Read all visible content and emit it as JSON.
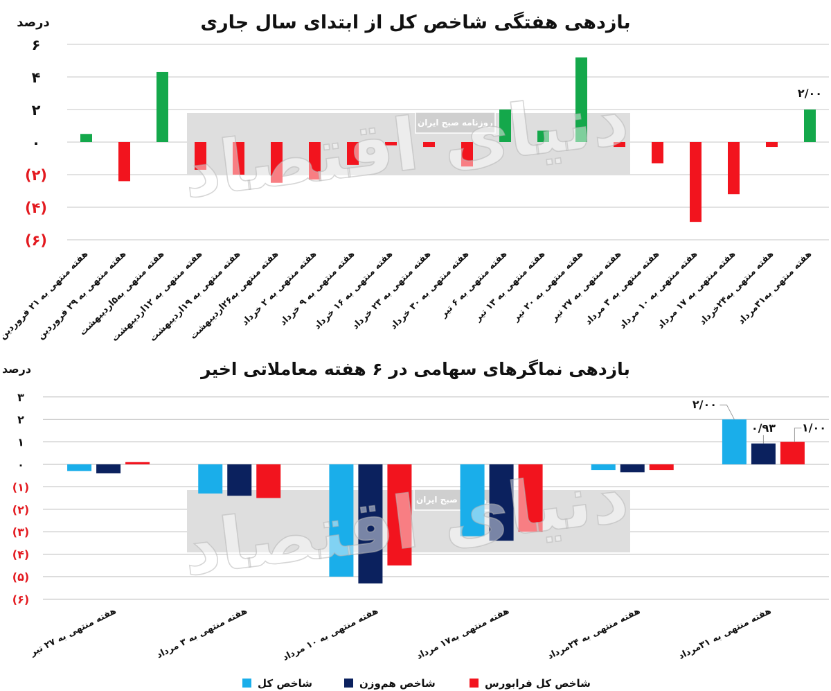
{
  "figure": {
    "watermark": {
      "logo_text": "دنیای اقتصاد",
      "tagline": "روزنامه صبح ایران"
    }
  },
  "chart_data": [
    {
      "type": "bar",
      "title": "بازدهی هفتگی شاخص کل از ابتدای سال جاری",
      "ylabel": "درصد",
      "xlabel": "",
      "categories": [
        "هفته منتهی به ۲۱ فروردین",
        "هفته منتهی به ۲۹ فروردین",
        "هفته منتهی به۵اردیبهشت",
        "هفته منتهی به ۱۲اردیبهشت",
        "هفته منتهی به ۱۹اردیبهشت",
        "هفته منتهی به۲۶اردیبهشت",
        "هفته منتهی به ۲ خرداد",
        "هفته منتهی به ۹ خرداد",
        "هفته منتهی به ۱۶ خرداد",
        "هفته منتهی به ۲۳ خرداد",
        "هفته منتهی به ۳۰ خرداد",
        "هفته منتهی به ۶ تیر",
        "هفته منتهی به ۱۳ تیر",
        "هفته منتهی به ۲۰ تیر",
        "هفته منتهی به ۲۷ تیر",
        "هفته منتهی به ۳ مرداد",
        "هفته منتهی به ۱۰ مرداد",
        "هفته منتهی به ۱۷ مرداد",
        "هفته منتهی به۲۴خرداد",
        "هفته منتهی به۳۱مرداد"
      ],
      "values": [
        0.5,
        -2.4,
        4.3,
        -1.7,
        -2.0,
        -2.5,
        -2.3,
        -1.4,
        -0.2,
        -0.3,
        -1.5,
        2.0,
        0.7,
        5.2,
        -0.3,
        -1.3,
        -4.9,
        -3.2,
        -0.3,
        2.0
      ],
      "ylim": [
        -6,
        6
      ],
      "yticks": [
        {
          "value": 6,
          "label": "۶"
        },
        {
          "value": 4,
          "label": "۴"
        },
        {
          "value": 2,
          "label": "۲"
        },
        {
          "value": 0,
          "label": "۰"
        },
        {
          "value": -2,
          "label": "(۲)"
        },
        {
          "value": -4,
          "label": "(۴)"
        },
        {
          "value": -6,
          "label": "(۶)"
        }
      ],
      "data_labels": [
        {
          "index": 19,
          "text": "۲/۰۰"
        }
      ],
      "grid": true,
      "colors": {
        "positive_bar": "#14a84b",
        "negative_bar": "#f2141e",
        "negative_tick_label": "#e3191f"
      }
    },
    {
      "type": "bar",
      "title": "بازدهی نماگرهای سهامی در ۶ هفته معاملاتی اخیر",
      "ylabel": "درصد",
      "xlabel": "",
      "categories": [
        "هفته منتهی به ۲۷ تیر",
        "هفته منتهی به ۳ مرداد",
        "هفته منتهی به ۱۰ مرداد",
        "هفته منتهی به۱۷ مرداد",
        "هفته منتهی به ۲۴مرداد",
        "هفته منتهی به ۳۱مرداد"
      ],
      "series": [
        {
          "name": "شاخص کل",
          "color": "#1aaeea",
          "values": [
            -0.3,
            -1.3,
            -5.0,
            -3.2,
            -0.25,
            2.0
          ]
        },
        {
          "name": "شاخص هم‌وزن",
          "color": "#0b215e",
          "values": [
            -0.4,
            -1.4,
            -5.3,
            -3.4,
            -0.35,
            0.93
          ]
        },
        {
          "name": "شاخص کل فرابورس",
          "color": "#f2141e",
          "values": [
            0.1,
            -1.5,
            -4.5,
            -3.0,
            -0.25,
            1.0
          ]
        }
      ],
      "ylim": [
        -6,
        3
      ],
      "yticks": [
        {
          "value": 3,
          "label": "۳"
        },
        {
          "value": 2,
          "label": "۲"
        },
        {
          "value": 1,
          "label": "۱"
        },
        {
          "value": 0,
          "label": "۰"
        },
        {
          "value": -1,
          "label": "(۱)"
        },
        {
          "value": -2,
          "label": "(۲)"
        },
        {
          "value": -3,
          "label": "(۳)"
        },
        {
          "value": -4,
          "label": "(۴)"
        },
        {
          "value": -5,
          "label": "(۵)"
        },
        {
          "value": -6,
          "label": "(۶)"
        }
      ],
      "data_labels": [
        {
          "series": 0,
          "index": 5,
          "text": "۲/۰۰"
        },
        {
          "series": 1,
          "index": 5,
          "text": "۰/۹۳"
        },
        {
          "series": 2,
          "index": 5,
          "text": "۱/۰۰"
        }
      ],
      "legend": "bottom",
      "grid": true,
      "colors": {
        "negative_tick_label": "#e3191f"
      }
    }
  ]
}
